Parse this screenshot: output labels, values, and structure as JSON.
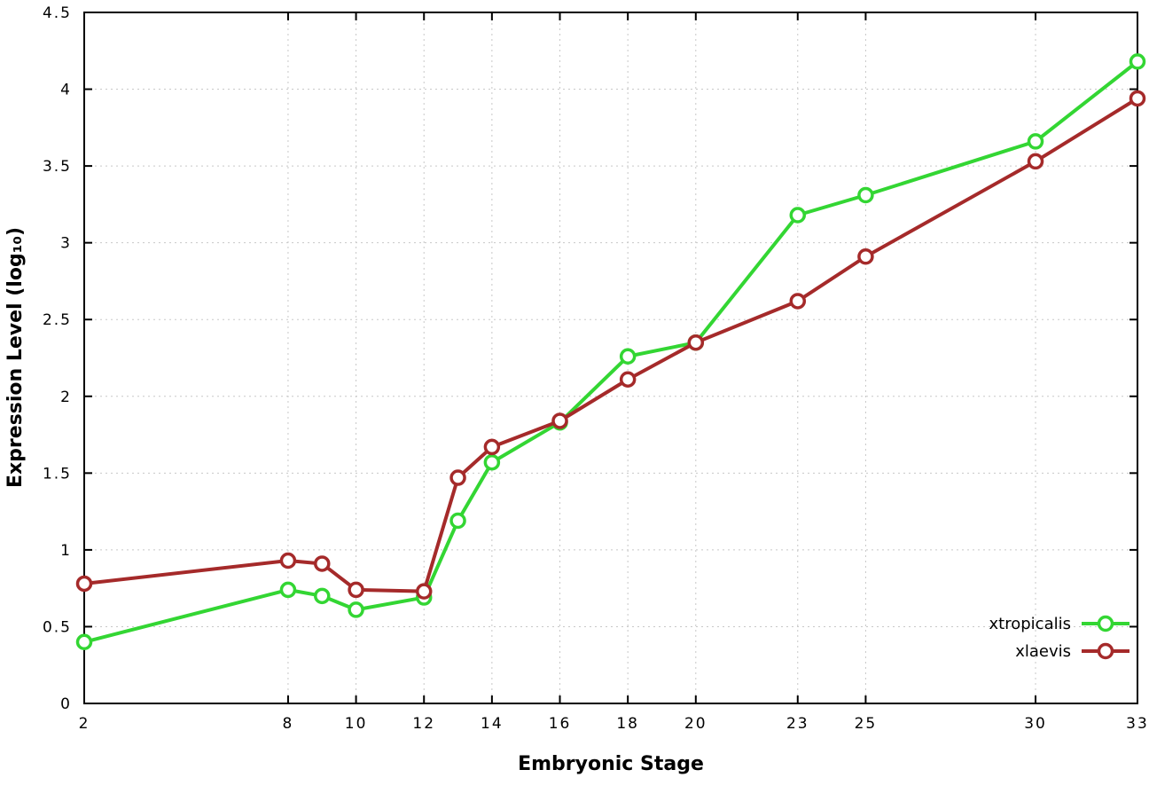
{
  "chart_data": {
    "type": "line",
    "title": "",
    "xlabel": "Embryonic Stage",
    "ylabel": "Expression Level (log₁₀)",
    "x_range": [
      2,
      33
    ],
    "y_range": [
      0,
      4.5
    ],
    "grid": true,
    "grid_color": "#c8c8c8",
    "axis_color": "#000000",
    "legend_position": "bottom-right",
    "x_ticks": [
      {
        "v": 2,
        "label": "2"
      },
      {
        "v": 8,
        "label": "8"
      },
      {
        "v": 10,
        "label": "10"
      },
      {
        "v": 12,
        "label": "12"
      },
      {
        "v": 14,
        "label": "14"
      },
      {
        "v": 16,
        "label": "16"
      },
      {
        "v": 18,
        "label": "18"
      },
      {
        "v": 20,
        "label": "20"
      },
      {
        "v": 23,
        "label": "23"
      },
      {
        "v": 25,
        "label": "25"
      },
      {
        "v": 30,
        "label": "30"
      },
      {
        "v": 33,
        "label": "33"
      }
    ],
    "y_ticks": [
      {
        "v": 0,
        "label": "0"
      },
      {
        "v": 0.5,
        "label": "0.5"
      },
      {
        "v": 1,
        "label": "1"
      },
      {
        "v": 1.5,
        "label": "1.5"
      },
      {
        "v": 2,
        "label": "2"
      },
      {
        "v": 2.5,
        "label": "2.5"
      },
      {
        "v": 3,
        "label": "3"
      },
      {
        "v": 3.5,
        "label": "3.5"
      },
      {
        "v": 4,
        "label": "4"
      },
      {
        "v": 4.5,
        "label": "4.5"
      }
    ],
    "x": [
      2,
      8,
      9,
      10,
      12,
      13,
      14,
      16,
      18,
      20,
      23,
      25,
      30,
      33
    ],
    "series": [
      {
        "name": "xtropicalis",
        "color": "#33d633",
        "marker": "open-circle",
        "values": [
          0.4,
          0.74,
          0.7,
          0.61,
          0.69,
          1.19,
          1.57,
          1.83,
          2.26,
          2.35,
          3.18,
          3.31,
          3.66,
          4.18
        ]
      },
      {
        "name": "xlaevis",
        "color": "#a52a2a",
        "marker": "open-circle",
        "values": [
          0.78,
          0.93,
          0.91,
          0.74,
          0.73,
          1.47,
          1.67,
          1.84,
          2.11,
          2.35,
          2.62,
          2.91,
          3.53,
          3.94
        ]
      }
    ]
  }
}
